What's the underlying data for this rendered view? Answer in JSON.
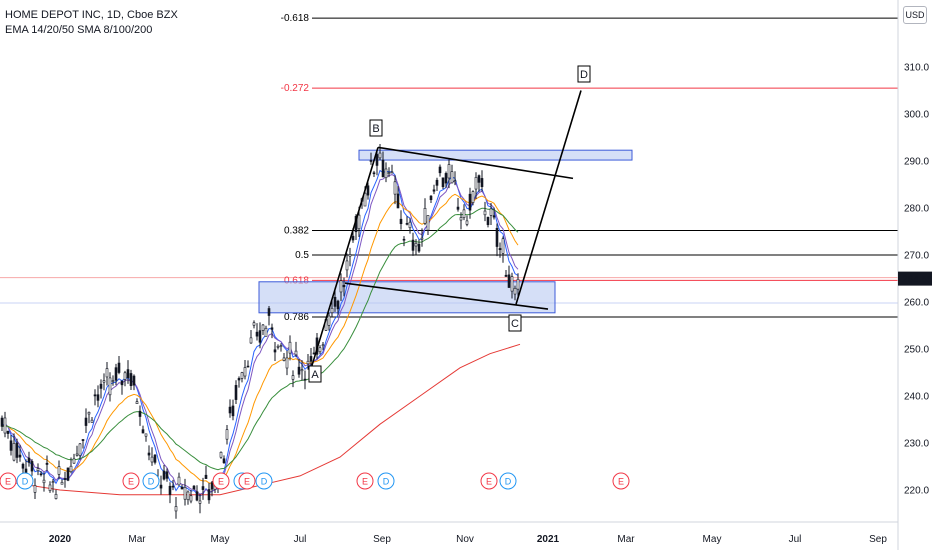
{
  "legend": {
    "symbol_line": "HOME DEPOT INC, 1D, Cboe BZX",
    "indicators_line": "EMA 14/20/50 SMA 8/100/200"
  },
  "currency_button": "USD",
  "colors": {
    "up": "#26a69a",
    "down": "#ef5350",
    "candle": "#131722",
    "fib_line": "#000000",
    "fib_highlight": "#f23645",
    "box_fill": "#b3c4f0",
    "box_border": "#3d5bd9",
    "ema14": "#2962ff",
    "ema20": "#7e57c2",
    "ema50": "#ff9800",
    "sma100": "#388e3c",
    "sma200": "#e53935",
    "last_price": "#131722",
    "earnings": "#f23645",
    "dividend": "#2196f3"
  },
  "chart_data": {
    "type": "candlestick",
    "title": "HOME DEPOT INC, 1D, Cboe BZX",
    "ylim": [
      215,
      322
    ],
    "y_ticks": [
      220,
      230,
      240,
      250,
      260,
      270,
      280,
      290,
      300,
      310
    ],
    "x_ticks": [
      "2020",
      "Mar",
      "May",
      "Jul",
      "Sep",
      "Nov",
      "2021",
      "Mar",
      "May",
      "Jul",
      "Sep"
    ],
    "last_price": 264.55,
    "last_price_label": "264.55",
    "fib_levels": [
      {
        "label": "-0.618",
        "value": 320.4,
        "highlight": false
      },
      {
        "label": "-0.272",
        "value": 305.5,
        "highlight": true
      },
      {
        "label": "0.382",
        "value": 275.2,
        "highlight": false
      },
      {
        "label": "0.5",
        "value": 270.0,
        "highlight": false
      },
      {
        "label": "0.618",
        "value": 264.6,
        "highlight": true
      },
      {
        "label": "0.786",
        "value": 256.8,
        "highlight": false
      }
    ],
    "pattern_points": [
      {
        "label": "A",
        "date": "Jul 20",
        "price": 246.5
      },
      {
        "label": "B",
        "date": "Aug 28",
        "price": 292.9
      },
      {
        "label": "C",
        "date": "Dec 8",
        "price": 259.5
      },
      {
        "label": "D",
        "date": "Jan 12",
        "price": 305.0
      }
    ],
    "events": [
      {
        "type": "E",
        "text": "E",
        "date": "Nov 2019"
      },
      {
        "type": "D",
        "text": "D",
        "date": "Nov 2019"
      },
      {
        "type": "E",
        "text": "E",
        "date": "Feb 2020"
      },
      {
        "type": "D",
        "text": "D",
        "date": "Mar 2020"
      },
      {
        "type": "E",
        "text": "E",
        "date": "May 2020"
      },
      {
        "type": "D",
        "text": "D",
        "date": "May 2020"
      },
      {
        "type": "E",
        "text": "E",
        "date": "Jun 2020"
      },
      {
        "type": "D",
        "text": "D",
        "date": "Jun 2020"
      },
      {
        "type": "E",
        "text": "E",
        "date": "Aug 2020"
      },
      {
        "type": "D",
        "text": "D",
        "date": "Sep 2020"
      },
      {
        "type": "E",
        "text": "E",
        "date": "Nov 2020"
      },
      {
        "type": "D",
        "text": "D",
        "date": "Dec 2020"
      },
      {
        "type": "E",
        "text": "E",
        "date": "Feb 2021"
      }
    ]
  }
}
